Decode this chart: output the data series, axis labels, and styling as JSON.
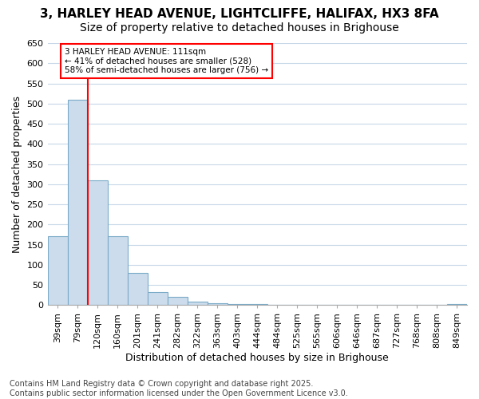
{
  "title_line1": "3, HARLEY HEAD AVENUE, LIGHTCLIFFE, HALIFAX, HX3 8FA",
  "title_line2": "Size of property relative to detached houses in Brighouse",
  "xlabel": "Distribution of detached houses by size in Brighouse",
  "ylabel": "Number of detached properties",
  "categories": [
    "39sqm",
    "79sqm",
    "120sqm",
    "160sqm",
    "201sqm",
    "241sqm",
    "282sqm",
    "322sqm",
    "363sqm",
    "403sqm",
    "444sqm",
    "484sqm",
    "525sqm",
    "565sqm",
    "606sqm",
    "646sqm",
    "687sqm",
    "727sqm",
    "768sqm",
    "808sqm",
    "849sqm"
  ],
  "values": [
    170,
    510,
    310,
    170,
    80,
    33,
    20,
    8,
    5,
    3,
    2,
    1,
    1,
    0,
    0,
    0,
    0,
    0,
    0,
    0,
    2
  ],
  "bar_color": "#ccdcec",
  "bar_edge_color": "#7aaac8",
  "red_line_x": 1.5,
  "annotation_line1": "3 HARLEY HEAD AVENUE: 111sqm",
  "annotation_line2": "← 41% of detached houses are smaller (528)",
  "annotation_line3": "58% of semi-detached houses are larger (756) →",
  "ylim": [
    0,
    650
  ],
  "yticks": [
    0,
    50,
    100,
    150,
    200,
    250,
    300,
    350,
    400,
    450,
    500,
    550,
    600,
    650
  ],
  "footer_line1": "Contains HM Land Registry data © Crown copyright and database right 2025.",
  "footer_line2": "Contains public sector information licensed under the Open Government Licence v3.0.",
  "background_color": "#ffffff",
  "grid_color": "#c8d8e8",
  "title_fontsize": 11,
  "subtitle_fontsize": 10,
  "tick_fontsize": 8,
  "label_fontsize": 9,
  "footer_fontsize": 7
}
